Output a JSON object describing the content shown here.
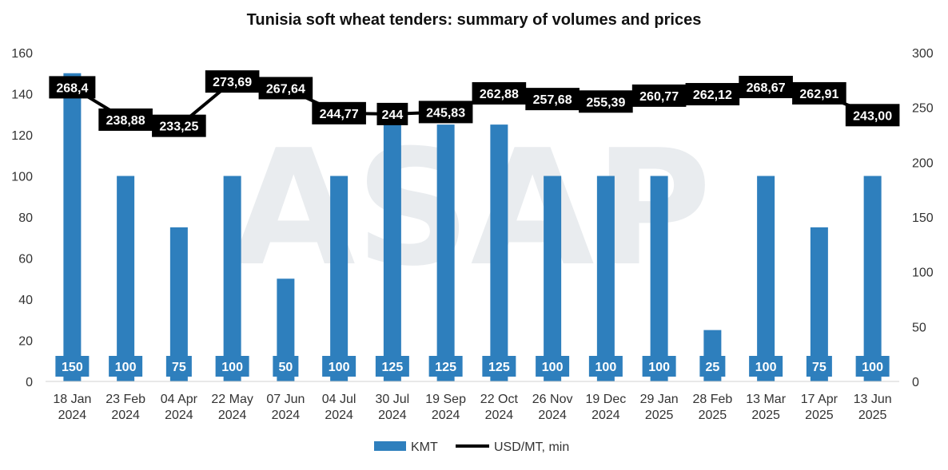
{
  "chart_data": {
    "type": "bar",
    "title": "Tunisia soft wheat tenders: summary of volumes and prices",
    "categories": [
      [
        "18 Jan",
        "2024"
      ],
      [
        "23 Feb",
        "2024"
      ],
      [
        "04 Apr",
        "2024"
      ],
      [
        "22 May",
        "2024"
      ],
      [
        "07 Jun",
        "2024"
      ],
      [
        "04 Jul",
        "2024"
      ],
      [
        "30 Jul",
        "2024"
      ],
      [
        "19 Sep",
        "2024"
      ],
      [
        "22 Oct",
        "2024"
      ],
      [
        "26 Nov",
        "2024"
      ],
      [
        "19 Dec",
        "2024"
      ],
      [
        "29 Jan",
        "2025"
      ],
      [
        "28 Feb",
        "2025"
      ],
      [
        "13 Mar",
        "2025"
      ],
      [
        "17 Apr",
        "2025"
      ],
      [
        "13 Jun",
        "2025"
      ]
    ],
    "series": [
      {
        "name": "KMT",
        "type": "bar",
        "axis": "left",
        "color": "#2e7fbd",
        "values": [
          150,
          100,
          75,
          100,
          50,
          100,
          125,
          125,
          125,
          100,
          100,
          100,
          25,
          100,
          75,
          100
        ],
        "labels": [
          "150",
          "100",
          "75",
          "100",
          "50",
          "100",
          "125",
          "125",
          "125",
          "100",
          "100",
          "100",
          "25",
          "100",
          "75",
          "100"
        ]
      },
      {
        "name": "USD/MT, min",
        "type": "line",
        "axis": "right",
        "color": "#000000",
        "values": [
          268.4,
          238.88,
          233.25,
          273.69,
          267.64,
          244.77,
          244,
          245.83,
          262.88,
          257.68,
          255.39,
          260.77,
          262.12,
          268.67,
          262.91,
          243.0
        ],
        "labels": [
          "268,4",
          "238,88",
          "233,25",
          "273,69",
          "267,64",
          "244,77",
          "244",
          "245,83",
          "262,88",
          "257,68",
          "255,39",
          "260,77",
          "262,12",
          "268,67",
          "262,91",
          "243,00"
        ]
      }
    ],
    "y_left": {
      "min": 0,
      "max": 160,
      "ticks": [
        0,
        20,
        40,
        60,
        80,
        100,
        120,
        140,
        160
      ]
    },
    "y_right": {
      "min": 0,
      "max": 300,
      "ticks": [
        0,
        50,
        100,
        150,
        200,
        250,
        300
      ]
    },
    "grid": false,
    "legend_position": "bottom",
    "watermark": "ASAP"
  }
}
